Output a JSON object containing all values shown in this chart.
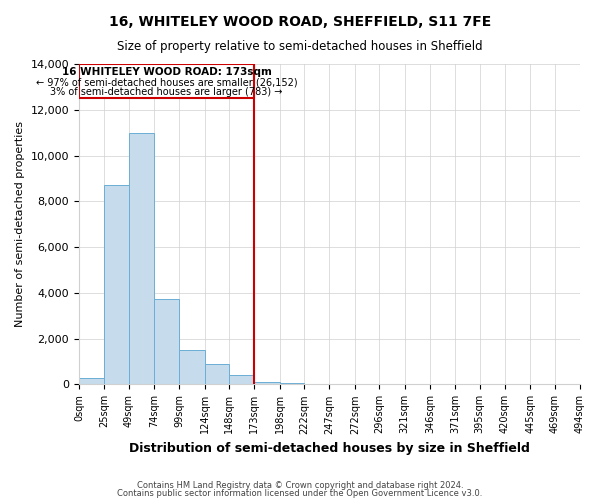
{
  "title": "16, WHITELEY WOOD ROAD, SHEFFIELD, S11 7FE",
  "subtitle": "Size of property relative to semi-detached houses in Sheffield",
  "xlabel": "Distribution of semi-detached houses by size in Sheffield",
  "ylabel": "Number of semi-detached properties",
  "bar_color": "#c6dcec",
  "bar_edge_color": "#6baed6",
  "vline_x": 173,
  "vline_color": "#cc0000",
  "annotation_title": "16 WHITELEY WOOD ROAD: 173sqm",
  "annotation_line1": "← 97% of semi-detached houses are smaller (26,152)",
  "annotation_line2": "3% of semi-detached houses are larger (783) →",
  "annotation_box_color": "#cc0000",
  "bin_edges": [
    0,
    25,
    49,
    74,
    99,
    124,
    148,
    173,
    198,
    222,
    247,
    272,
    296,
    321,
    346,
    371,
    395,
    420,
    445,
    469,
    494
  ],
  "bin_heights": [
    300,
    8700,
    11000,
    3750,
    1500,
    900,
    400,
    120,
    50,
    0,
    0,
    0,
    0,
    0,
    0,
    0,
    0,
    0,
    0,
    0
  ],
  "tick_labels": [
    "0sqm",
    "25sqm",
    "49sqm",
    "74sqm",
    "99sqm",
    "124sqm",
    "148sqm",
    "173sqm",
    "198sqm",
    "222sqm",
    "247sqm",
    "272sqm",
    "296sqm",
    "321sqm",
    "346sqm",
    "371sqm",
    "395sqm",
    "420sqm",
    "445sqm",
    "469sqm",
    "494sqm"
  ],
  "ylim": [
    0,
    14000
  ],
  "yticks": [
    0,
    2000,
    4000,
    6000,
    8000,
    10000,
    12000,
    14000
  ],
  "footer1": "Contains HM Land Registry data © Crown copyright and database right 2024.",
  "footer2": "Contains public sector information licensed under the Open Government Licence v3.0."
}
